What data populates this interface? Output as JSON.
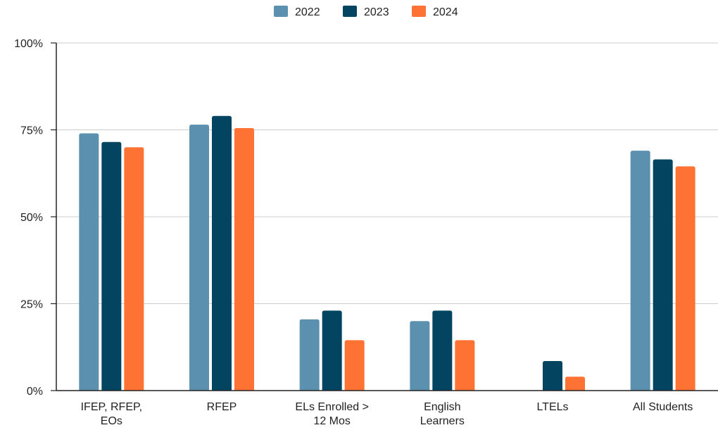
{
  "chart_data": {
    "type": "bar",
    "categories": [
      [
        "IFEP, RFEP,",
        "EOs"
      ],
      [
        "RFEP"
      ],
      [
        "ELs Enrolled >",
        "12 Mos"
      ],
      [
        "English",
        "Learners"
      ],
      [
        "LTELs"
      ],
      [
        "All Students"
      ]
    ],
    "series": [
      {
        "name": "2022",
        "color": "#5b91ae",
        "values": [
          74,
          76.5,
          20.5,
          20,
          null,
          69
        ]
      },
      {
        "name": "2023",
        "color": "#034460",
        "values": [
          71.5,
          79,
          23,
          23,
          8.5,
          66.5
        ]
      },
      {
        "name": "2024",
        "color": "#fe7334",
        "values": [
          70,
          75.5,
          14.5,
          14.5,
          4,
          64.5
        ]
      }
    ],
    "y_ticks": [
      "0%",
      "25%",
      "50%",
      "75%",
      "100%"
    ],
    "ylim": [
      0,
      100
    ],
    "grid": true,
    "legend_position": "top-center"
  }
}
